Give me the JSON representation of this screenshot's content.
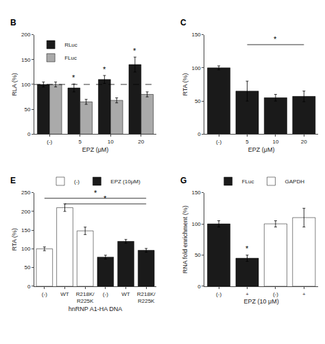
{
  "chart_data": [
    {
      "type": "bar",
      "title": "B",
      "categories": [
        "(-)",
        "5",
        "10",
        "20"
      ],
      "xlabel": "EPZ (μM)",
      "ylabel": "RLA (%)",
      "ylim": [
        0,
        200
      ],
      "yticks": [
        0,
        50,
        100,
        150,
        200
      ],
      "grid": false,
      "legend": "upper left",
      "series": [
        {
          "name": "RLuc",
          "color": "#1a1a1a",
          "values": [
            100,
            93,
            110,
            140
          ],
          "errors": [
            5,
            8,
            8,
            15
          ]
        },
        {
          "name": "FLuc",
          "color": "#aaaaaa",
          "values": [
            100,
            65,
            68,
            80
          ],
          "errors": [
            5,
            5,
            5,
            5
          ]
        }
      ],
      "reference_line": 100,
      "annotations": [
        {
          "text": "*",
          "series": "RLuc",
          "index": 1
        },
        {
          "text": "*",
          "series": "RLuc",
          "index": 2
        },
        {
          "text": "*",
          "series": "RLuc",
          "index": 3
        }
      ]
    },
    {
      "type": "bar",
      "title": "C",
      "categories": [
        "(-)",
        "5",
        "10",
        "20"
      ],
      "xlabel": "EPZ (μM)",
      "ylabel": "RTA (%)",
      "ylim": [
        0,
        150
      ],
      "yticks": [
        0,
        50,
        100,
        150
      ],
      "grid": false,
      "color": "#1a1a1a",
      "values": [
        100,
        65,
        55,
        57
      ],
      "errors": [
        3,
        15,
        5,
        8
      ],
      "brackets": [
        {
          "from": 1,
          "to": 3,
          "y": 135,
          "text": "*"
        }
      ]
    },
    {
      "type": "bar",
      "title": "E",
      "categories": [
        "(-)",
        "WT",
        "R218K/\nR225K",
        "(-)",
        "WT",
        "R218K/\nR225K"
      ],
      "xlabel": "hnRNP A1-HA DNA",
      "ylabel": "RTA (%)",
      "ylim": [
        0,
        250
      ],
      "yticks": [
        0,
        50,
        100,
        150,
        200,
        250
      ],
      "grid": false,
      "legend": "top",
      "series": [
        {
          "name": "(-)",
          "color": "#ffffff",
          "values": [
            100,
            210,
            148,
            null,
            null,
            null
          ],
          "errors": [
            5,
            10,
            10,
            null,
            null,
            null
          ]
        },
        {
          "name": "EPZ (10μM)",
          "color": "#1a1a1a",
          "values": [
            null,
            null,
            null,
            78,
            120,
            96
          ],
          "errors": [
            null,
            null,
            null,
            5,
            5,
            5
          ]
        }
      ],
      "brackets": [
        {
          "from": 0,
          "to": 5,
          "y": 235,
          "text": "*"
        },
        {
          "from": 1,
          "to": 5,
          "y": 220,
          "text": "*"
        }
      ]
    },
    {
      "type": "bar",
      "title": "G",
      "categories": [
        "(-)",
        "+",
        "(-)",
        "+"
      ],
      "xlabel": "EPZ (10 μM)",
      "ylabel": "RNA fold enrichment (%)",
      "ylim": [
        0,
        150
      ],
      "yticks": [
        0,
        50,
        100,
        150
      ],
      "grid": false,
      "legend": "top",
      "series": [
        {
          "name": "FLuc",
          "color": "#1a1a1a",
          "values": [
            100,
            45,
            null,
            null
          ],
          "errors": [
            5,
            5,
            null,
            null
          ]
        },
        {
          "name": "GAPDH",
          "color": "#ffffff",
          "values": [
            null,
            null,
            100,
            110
          ],
          "errors": [
            null,
            null,
            5,
            15
          ]
        }
      ],
      "annotations": [
        {
          "text": "*",
          "series": "FLuc",
          "index": 1
        }
      ]
    }
  ]
}
